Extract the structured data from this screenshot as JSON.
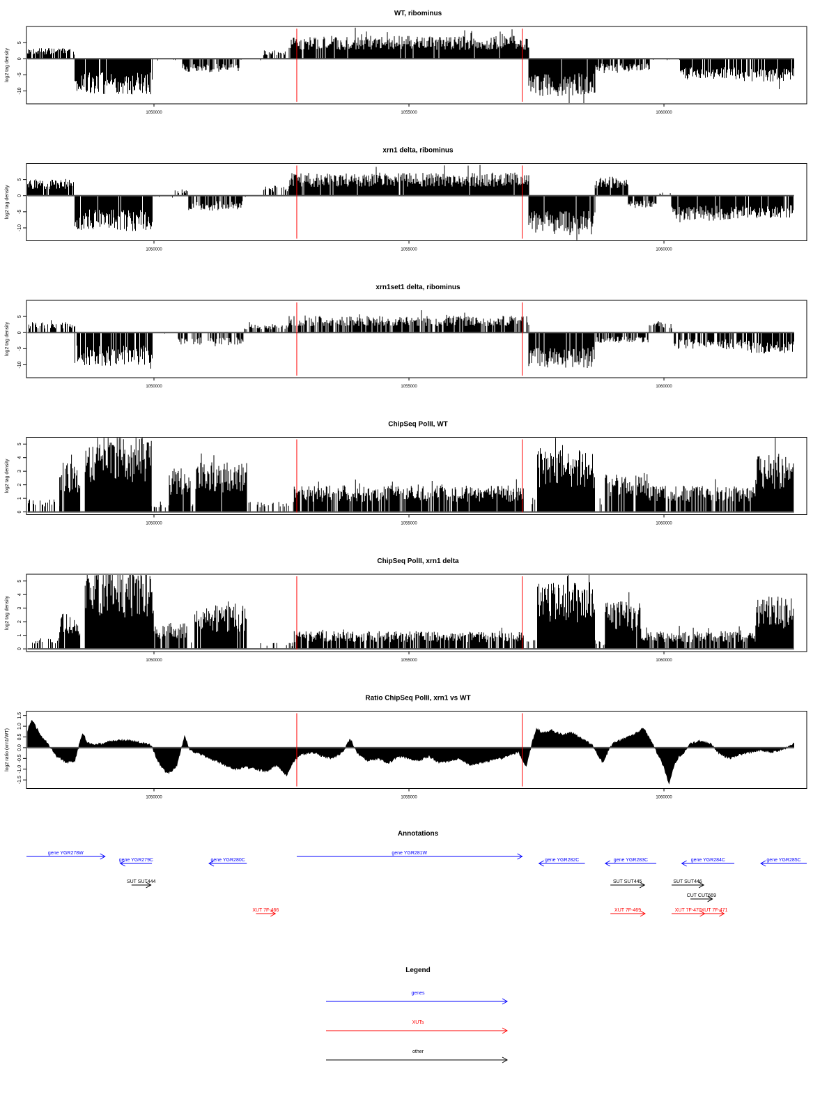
{
  "chart_data": [
    {
      "type": "bar",
      "title": "WT, ribominus",
      "ylabel": "log2 tag density",
      "xlim": [
        1047500,
        1062800
      ],
      "ylim": [
        -14,
        10
      ],
      "yticks": [
        -10,
        -5,
        0,
        5
      ],
      "ytick_labels": [
        "-10",
        "-5",
        "0",
        "5"
      ],
      "xticks": [
        1050000,
        1055000,
        1060000
      ],
      "xtick_labels": [
        "1050000",
        "1055000",
        "1060000"
      ],
      "red_lines": [
        1052800,
        1057220
      ],
      "segments": [
        {
          "from": 1047520,
          "to": 1048450,
          "value": 2.5,
          "density": 0.75
        },
        {
          "from": 1048450,
          "to": 1049980,
          "value": -8.5,
          "density": 0.95
        },
        {
          "from": 1049980,
          "to": 1050560,
          "value": -0.5,
          "density": 0.06
        },
        {
          "from": 1050560,
          "to": 1051680,
          "value": -3.2,
          "density": 0.7
        },
        {
          "from": 1051680,
          "to": 1052150,
          "value": -0.6,
          "density": 0.1
        },
        {
          "from": 1052150,
          "to": 1052650,
          "value": 2.0,
          "density": 0.45
        },
        {
          "from": 1052650,
          "to": 1057350,
          "value": 5.5,
          "density": 0.95
        },
        {
          "from": 1057350,
          "to": 1058650,
          "value": -9.0,
          "density": 0.95
        },
        {
          "from": 1058650,
          "to": 1059720,
          "value": -3.0,
          "density": 0.8
        },
        {
          "from": 1059720,
          "to": 1060320,
          "value": -0.5,
          "density": 0.06
        },
        {
          "from": 1060320,
          "to": 1061550,
          "value": -5.0,
          "density": 0.85
        },
        {
          "from": 1061550,
          "to": 1062550,
          "value": -5.5,
          "density": 0.85
        }
      ]
    },
    {
      "type": "bar",
      "title": "xrn1 delta, ribominus",
      "ylabel": "log2 tag density",
      "xlim": [
        1047500,
        1062800
      ],
      "ylim": [
        -14,
        10
      ],
      "yticks": [
        -10,
        -5,
        0,
        5
      ],
      "ytick_labels": [
        "-10",
        "-5",
        "0",
        "5"
      ],
      "xticks": [
        1050000,
        1055000,
        1060000
      ],
      "xtick_labels": [
        "1050000",
        "1055000",
        "1060000"
      ],
      "red_lines": [
        1052800,
        1057220
      ],
      "segments": [
        {
          "from": 1047520,
          "to": 1048450,
          "value": 4.0,
          "density": 0.9
        },
        {
          "from": 1048450,
          "to": 1049980,
          "value": -8.5,
          "density": 0.95
        },
        {
          "from": 1049980,
          "to": 1050400,
          "value": -0.5,
          "density": 0.06
        },
        {
          "from": 1050400,
          "to": 1050680,
          "value": 1.5,
          "density": 0.4
        },
        {
          "from": 1050680,
          "to": 1051750,
          "value": -3.5,
          "density": 0.8
        },
        {
          "from": 1051750,
          "to": 1052150,
          "value": -0.5,
          "density": 0.1
        },
        {
          "from": 1052150,
          "to": 1052650,
          "value": 2.5,
          "density": 0.55
        },
        {
          "from": 1052650,
          "to": 1057350,
          "value": 5.5,
          "density": 0.97
        },
        {
          "from": 1057350,
          "to": 1058650,
          "value": -9.5,
          "density": 0.97
        },
        {
          "from": 1058650,
          "to": 1059300,
          "value": 4.5,
          "density": 0.9
        },
        {
          "from": 1059300,
          "to": 1059850,
          "value": -3.0,
          "density": 0.8
        },
        {
          "from": 1059850,
          "to": 1060150,
          "value": 0.8,
          "density": 0.2
        },
        {
          "from": 1060150,
          "to": 1061550,
          "value": -6.0,
          "density": 0.9
        },
        {
          "from": 1061550,
          "to": 1062550,
          "value": -5.5,
          "density": 0.9
        }
      ]
    },
    {
      "type": "bar",
      "title": "xrn1set1 delta, ribominus",
      "ylabel": "log2 tag density",
      "xlim": [
        1047500,
        1062800
      ],
      "ylim": [
        -14,
        10
      ],
      "yticks": [
        -10,
        -5,
        0,
        5
      ],
      "ytick_labels": [
        "-10",
        "-5",
        "0",
        "5"
      ],
      "xticks": [
        1050000,
        1055000,
        1060000
      ],
      "xtick_labels": [
        "1050000",
        "1055000",
        "1060000"
      ],
      "red_lines": [
        1052800,
        1057220
      ],
      "segments": [
        {
          "from": 1047520,
          "to": 1048450,
          "value": 2.5,
          "density": 0.55
        },
        {
          "from": 1048450,
          "to": 1049980,
          "value": -8.0,
          "density": 0.9
        },
        {
          "from": 1049980,
          "to": 1050450,
          "value": -0.5,
          "density": 0.08
        },
        {
          "from": 1050450,
          "to": 1051750,
          "value": -3.0,
          "density": 0.55
        },
        {
          "from": 1051750,
          "to": 1052650,
          "value": 2.0,
          "density": 0.5
        },
        {
          "from": 1052650,
          "to": 1057350,
          "value": 4.0,
          "density": 0.75
        },
        {
          "from": 1057350,
          "to": 1058650,
          "value": -8.5,
          "density": 0.9
        },
        {
          "from": 1058650,
          "to": 1059700,
          "value": -2.5,
          "density": 0.7
        },
        {
          "from": 1059700,
          "to": 1060200,
          "value": 2.5,
          "density": 0.6
        },
        {
          "from": 1060200,
          "to": 1061550,
          "value": -4.0,
          "density": 0.7
        },
        {
          "from": 1061550,
          "to": 1062550,
          "value": -5.0,
          "density": 0.8
        }
      ]
    },
    {
      "type": "bar",
      "title": "ChipSeq PolII, WT",
      "ylabel": "log2 tag density",
      "xlim": [
        1047500,
        1062800
      ],
      "ylim": [
        -0.2,
        5.5
      ],
      "yticks": [
        0,
        1,
        2,
        3,
        4,
        5
      ],
      "ytick_labels": [
        "0",
        "1",
        "2",
        "3",
        "4",
        "5"
      ],
      "xticks": [
        1050000,
        1055000,
        1060000
      ],
      "xtick_labels": [
        "1050000",
        "1055000",
        "1060000"
      ],
      "red_lines": [
        1052800,
        1057220
      ],
      "segments": [
        {
          "from": 1047520,
          "to": 1048150,
          "value": 0.8,
          "density": 0.3
        },
        {
          "from": 1048150,
          "to": 1048550,
          "value": 2.8,
          "density": 0.9
        },
        {
          "from": 1048550,
          "to": 1048650,
          "value": 0.0,
          "density": 0.0
        },
        {
          "from": 1048650,
          "to": 1049950,
          "value": 4.4,
          "density": 1.0
        },
        {
          "from": 1049950,
          "to": 1050300,
          "value": 0.6,
          "density": 0.3
        },
        {
          "from": 1050300,
          "to": 1050720,
          "value": 2.5,
          "density": 0.9
        },
        {
          "from": 1050720,
          "to": 1050820,
          "value": 0.6,
          "density": 0.3
        },
        {
          "from": 1050820,
          "to": 1051820,
          "value": 2.8,
          "density": 0.95
        },
        {
          "from": 1051820,
          "to": 1052750,
          "value": 0.6,
          "density": 0.25
        },
        {
          "from": 1052750,
          "to": 1057250,
          "value": 1.5,
          "density": 0.9
        },
        {
          "from": 1057250,
          "to": 1057520,
          "value": 0.8,
          "density": 0.3
        },
        {
          "from": 1057520,
          "to": 1058650,
          "value": 3.5,
          "density": 1.0
        },
        {
          "from": 1058650,
          "to": 1058850,
          "value": 0.8,
          "density": 0.3
        },
        {
          "from": 1058850,
          "to": 1059700,
          "value": 2.2,
          "density": 0.9
        },
        {
          "from": 1059700,
          "to": 1061800,
          "value": 1.5,
          "density": 0.8
        },
        {
          "from": 1061800,
          "to": 1062550,
          "value": 3.3,
          "density": 1.0
        }
      ]
    },
    {
      "type": "bar",
      "title": "ChipSeq PolII, xrn1 delta",
      "ylabel": "log2 tag density",
      "xlim": [
        1047500,
        1062800
      ],
      "ylim": [
        -0.2,
        5.5
      ],
      "yticks": [
        0,
        1,
        2,
        3,
        4,
        5
      ],
      "ytick_labels": [
        "0",
        "1",
        "2",
        "3",
        "4",
        "5"
      ],
      "xticks": [
        1050000,
        1055000,
        1060000
      ],
      "xtick_labels": [
        "1050000",
        "1055000",
        "1060000"
      ],
      "red_lines": [
        1052800,
        1057220
      ],
      "segments": [
        {
          "from": 1047520,
          "to": 1048150,
          "value": 0.6,
          "density": 0.3
        },
        {
          "from": 1048150,
          "to": 1048550,
          "value": 2.0,
          "density": 0.9
        },
        {
          "from": 1048550,
          "to": 1048650,
          "value": 0.0,
          "density": 0.0
        },
        {
          "from": 1048650,
          "to": 1050000,
          "value": 4.6,
          "density": 1.0
        },
        {
          "from": 1050000,
          "to": 1050650,
          "value": 1.5,
          "density": 0.8
        },
        {
          "from": 1050650,
          "to": 1050800,
          "value": 0.4,
          "density": 0.3
        },
        {
          "from": 1050800,
          "to": 1051820,
          "value": 2.5,
          "density": 0.95
        },
        {
          "from": 1051820,
          "to": 1052750,
          "value": 0.4,
          "density": 0.2
        },
        {
          "from": 1052750,
          "to": 1057250,
          "value": 1.0,
          "density": 0.85
        },
        {
          "from": 1057250,
          "to": 1057520,
          "value": 0.5,
          "density": 0.3
        },
        {
          "from": 1057520,
          "to": 1058650,
          "value": 3.8,
          "density": 1.0
        },
        {
          "from": 1058650,
          "to": 1058850,
          "value": 0.5,
          "density": 0.3
        },
        {
          "from": 1058850,
          "to": 1059550,
          "value": 2.7,
          "density": 0.95
        },
        {
          "from": 1059550,
          "to": 1061800,
          "value": 1.0,
          "density": 0.8
        },
        {
          "from": 1061800,
          "to": 1062550,
          "value": 3.0,
          "density": 1.0
        }
      ]
    },
    {
      "type": "area",
      "title": "Ratio ChipSeq PolII, xrn1 vs WT",
      "ylabel": "log2 ratio (xrn1/WT)",
      "xlim": [
        1047500,
        1062800
      ],
      "ylim": [
        -1.9,
        1.7
      ],
      "yticks": [
        -1.5,
        -1.0,
        -0.5,
        0.0,
        0.5,
        1.0,
        1.5
      ],
      "ytick_labels": [
        "-1.5",
        "-1.0",
        "-0.5",
        "0.0",
        "0.5",
        "1.0",
        "1.5"
      ],
      "xticks": [
        1050000,
        1055000,
        1060000
      ],
      "xtick_labels": [
        "1050000",
        "1055000",
        "1060000"
      ],
      "red_lines": [
        1052800,
        1057220
      ],
      "x": [
        1047520,
        1047600,
        1047700,
        1047800,
        1047950,
        1048100,
        1048300,
        1048450,
        1048600,
        1048700,
        1048800,
        1049000,
        1049200,
        1049400,
        1049600,
        1049800,
        1049950,
        1050050,
        1050150,
        1050250,
        1050350,
        1050450,
        1050600,
        1050700,
        1050800,
        1051000,
        1051200,
        1051400,
        1051600,
        1051800,
        1052000,
        1052200,
        1052400,
        1052600,
        1052750,
        1052900,
        1053100,
        1053300,
        1053500,
        1053700,
        1053850,
        1054000,
        1054200,
        1054400,
        1054600,
        1054800,
        1055000,
        1055200,
        1055400,
        1055600,
        1055800,
        1056000,
        1056200,
        1056400,
        1056600,
        1056800,
        1057000,
        1057150,
        1057300,
        1057400,
        1057500,
        1057600,
        1057800,
        1058000,
        1058200,
        1058400,
        1058600,
        1058700,
        1058800,
        1058900,
        1059000,
        1059200,
        1059400,
        1059600,
        1059750,
        1059900,
        1060000,
        1060100,
        1060200,
        1060300,
        1060400,
        1060500,
        1060700,
        1060900,
        1061100,
        1061300,
        1061500,
        1061700,
        1061900,
        1062100,
        1062300,
        1062500,
        1062550
      ],
      "y": [
        0.8,
        1.3,
        0.9,
        0.5,
        0.1,
        -0.4,
        -0.7,
        -0.6,
        0.7,
        0.2,
        0.15,
        0.2,
        0.3,
        0.35,
        0.3,
        0.2,
        0.1,
        -0.5,
        -0.9,
        -1.2,
        -1.1,
        -0.8,
        0.5,
        -0.1,
        -0.2,
        -0.4,
        -0.6,
        -0.8,
        -1.0,
        -0.9,
        -1.0,
        -1.1,
        -0.8,
        -1.3,
        -0.6,
        -0.3,
        -0.2,
        -0.4,
        -0.5,
        -0.2,
        0.4,
        -0.3,
        -0.6,
        -0.5,
        -0.7,
        -0.4,
        -0.5,
        -0.6,
        -0.4,
        -0.7,
        -0.6,
        -0.5,
        -0.8,
        -0.7,
        -0.6,
        -0.5,
        -0.3,
        -0.2,
        -0.9,
        0.1,
        0.9,
        0.7,
        0.8,
        0.6,
        0.7,
        0.4,
        0.1,
        -0.3,
        -0.7,
        -0.2,
        0.2,
        0.4,
        0.6,
        0.9,
        0.3,
        -0.4,
        -0.9,
        -1.7,
        -0.8,
        -0.4,
        -0.2,
        0.2,
        0.3,
        0.2,
        -0.3,
        -0.5,
        -0.3,
        -0.2,
        -0.1,
        -0.2,
        -0.1,
        0.1,
        0.2
      ]
    }
  ],
  "annotations": {
    "title": "Annotations",
    "items": [
      {
        "label": "gene YGR278W",
        "from": 1047500,
        "to": 1049040,
        "dir": "right",
        "color": "#0000ff",
        "row": 1
      },
      {
        "label": "gene YGR279C",
        "from": 1049340,
        "to": 1049960,
        "dir": "left",
        "color": "#0000ff",
        "row": 2
      },
      {
        "label": "gene YGR280C",
        "from": 1051080,
        "to": 1051820,
        "dir": "left",
        "color": "#0000ff",
        "row": 2
      },
      {
        "label": "gene YGR281W",
        "from": 1052800,
        "to": 1057220,
        "dir": "right",
        "color": "#0000ff",
        "row": 1
      },
      {
        "label": "gene YGR282C",
        "from": 1057550,
        "to": 1058450,
        "dir": "left",
        "color": "#0000ff",
        "row": 2
      },
      {
        "label": "gene YGR283C",
        "from": 1058850,
        "to": 1059850,
        "dir": "left",
        "color": "#0000ff",
        "row": 2
      },
      {
        "label": "gene YGR284C",
        "from": 1060350,
        "to": 1061380,
        "dir": "left",
        "color": "#0000ff",
        "row": 2
      },
      {
        "label": "gene YGR285C",
        "from": 1061900,
        "to": 1062800,
        "dir": "left",
        "color": "#0000ff",
        "row": 2
      },
      {
        "label": "SUT SUT444",
        "from": 1049560,
        "to": 1049940,
        "dir": "right",
        "color": "#000000",
        "row": 3
      },
      {
        "label": "SUT SUT445",
        "from": 1058950,
        "to": 1059620,
        "dir": "right",
        "color": "#000000",
        "row": 3
      },
      {
        "label": "SUT SUT446",
        "from": 1060150,
        "to": 1060780,
        "dir": "right",
        "color": "#000000",
        "row": 3
      },
      {
        "label": "CUT CUT669",
        "from": 1060520,
        "to": 1060950,
        "dir": "right",
        "color": "#000000",
        "row": 4
      },
      {
        "label": "XUT 7F-466",
        "from": 1052000,
        "to": 1052380,
        "dir": "right",
        "color": "#ff0000",
        "row": 5
      },
      {
        "label": "XUT 7F-469",
        "from": 1058950,
        "to": 1059630,
        "dir": "right",
        "color": "#ff0000",
        "row": 5
      },
      {
        "label": "XUT 7F-470",
        "from": 1060150,
        "to": 1060800,
        "dir": "right",
        "color": "#ff0000",
        "row": 5
      },
      {
        "label": "XUT 7F-471",
        "from": 1060800,
        "to": 1061180,
        "dir": "right",
        "color": "#ff0000",
        "row": 5
      }
    ]
  },
  "legend": {
    "title": "Legend",
    "items": [
      {
        "label": "genes",
        "color": "#0000ff"
      },
      {
        "label": "XUTs",
        "color": "#ff0000"
      },
      {
        "label": "other",
        "color": "#000000"
      }
    ]
  }
}
